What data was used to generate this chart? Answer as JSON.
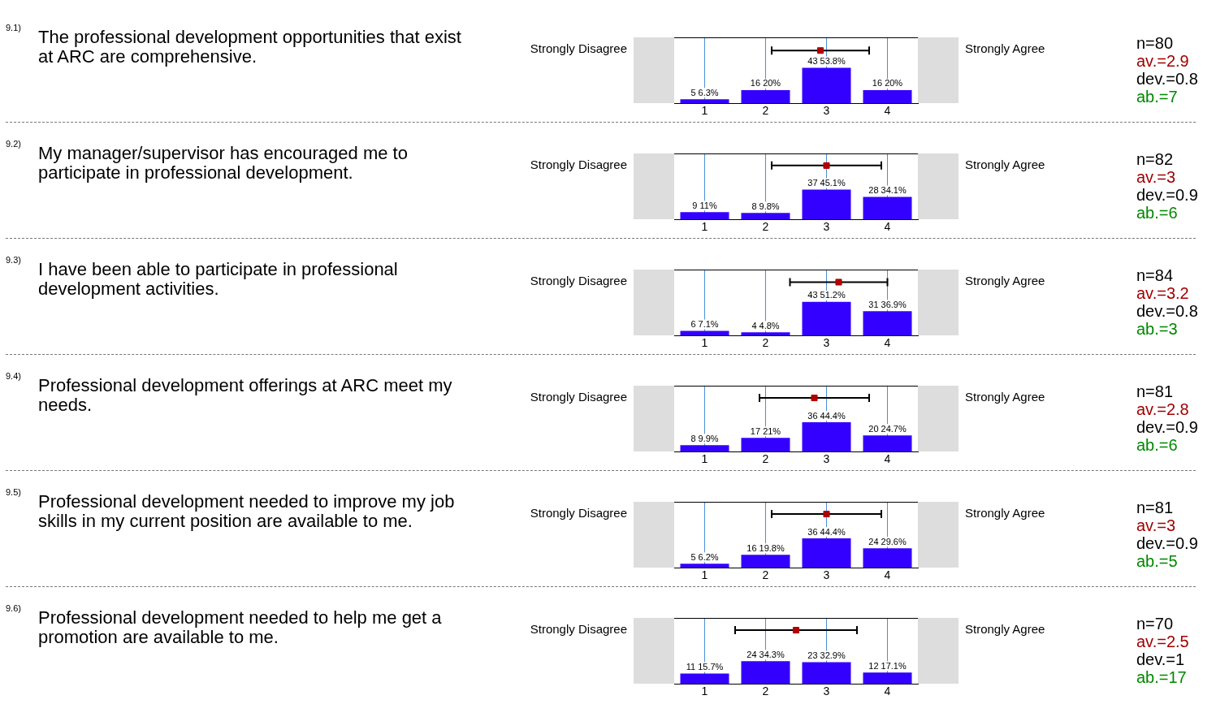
{
  "chart_data": [
    {
      "type": "bar",
      "xlim": [
        0.5,
        4.5
      ],
      "xticks": [
        1,
        2,
        3,
        4
      ],
      "grid": "x",
      "tick_labels": "x",
      "series": [
        {
          "type": "bar",
          "color": "#3300ff",
          "x": [
            1,
            2,
            3,
            4
          ],
          "values": [
            5,
            16,
            43,
            16
          ],
          "value_labels": [
            "5 6.3%",
            "16 20%",
            "43 53.8%",
            "16 20%"
          ]
        },
        {
          "type": "scatter",
          "marker": "square",
          "color": "#b00000",
          "x": [
            2.9
          ],
          "values": [
            64
          ],
          "xerrors": [
            0.8
          ]
        }
      ],
      "annotations": [
        "9.1)",
        "The professional development opportunities that exist at ARC are comprehensive.",
        "Strongly Disagree",
        "Strongly Agree",
        "n=80",
        "av.=2.9",
        "dev.=0.8",
        "ab.=7"
      ]
    },
    {
      "type": "bar",
      "xlim": [
        0.5,
        4.5
      ],
      "xticks": [
        1,
        2,
        3,
        4
      ],
      "grid": "x",
      "tick_labels": "x",
      "series": [
        {
          "type": "bar",
          "color": "#3300ff",
          "x": [
            1,
            2,
            3,
            4
          ],
          "values": [
            9,
            8,
            37,
            28
          ],
          "value_labels": [
            "9 11%",
            "8 9.8%",
            "37 45.1%",
            "28 34.1%"
          ]
        },
        {
          "type": "scatter",
          "marker": "square",
          "color": "#b00000",
          "x": [
            3
          ],
          "values": [
            67
          ],
          "xerrors": [
            0.9
          ]
        }
      ],
      "annotations": [
        "9.2)",
        "My manager/supervisor has encouraged me to participate in professional development.",
        "Strongly Disagree",
        "Strongly Agree",
        "n=82",
        "av.=3",
        "dev.=0.9",
        "ab.=6"
      ]
    },
    {
      "type": "bar",
      "xlim": [
        0.5,
        4.5
      ],
      "xticks": [
        1,
        2,
        3,
        4
      ],
      "grid": "x",
      "tick_labels": "x",
      "series": [
        {
          "type": "bar",
          "color": "#3300ff",
          "x": [
            1,
            2,
            3,
            4
          ],
          "values": [
            6,
            4,
            43,
            31
          ],
          "value_labels": [
            "6 7.1%",
            "4 4.8%",
            "43 51.2%",
            "31 36.9%"
          ]
        },
        {
          "type": "scatter",
          "marker": "square",
          "color": "#b00000",
          "x": [
            3.2
          ],
          "values": [
            68
          ],
          "xerrors": [
            0.8
          ]
        }
      ],
      "annotations": [
        "9.3)",
        "I have been able to participate in professional development activities.",
        "Strongly Disagree",
        "Strongly Agree",
        "n=84",
        "av.=3.2",
        "dev.=0.8",
        "ab.=3"
      ]
    },
    {
      "type": "bar",
      "xlim": [
        0.5,
        4.5
      ],
      "xticks": [
        1,
        2,
        3,
        4
      ],
      "grid": "x",
      "tick_labels": "x",
      "series": [
        {
          "type": "bar",
          "color": "#3300ff",
          "x": [
            1,
            2,
            3,
            4
          ],
          "values": [
            8,
            17,
            36,
            20
          ],
          "value_labels": [
            "8 9.9%",
            "17 21%",
            "36 44.4%",
            "20 24.7%"
          ]
        },
        {
          "type": "scatter",
          "marker": "square",
          "color": "#b00000",
          "x": [
            2.8
          ],
          "values": [
            66
          ],
          "xerrors": [
            0.9
          ]
        }
      ],
      "annotations": [
        "9.4)",
        "Professional development offerings at ARC meet my needs.",
        "Strongly Disagree",
        "Strongly Agree",
        "n=81",
        "av.=2.8",
        "dev.=0.9",
        "ab.=6"
      ]
    },
    {
      "type": "bar",
      "xlim": [
        0.5,
        4.5
      ],
      "xticks": [
        1,
        2,
        3,
        4
      ],
      "grid": "x",
      "tick_labels": "x",
      "series": [
        {
          "type": "bar",
          "color": "#3300ff",
          "x": [
            1,
            2,
            3,
            4
          ],
          "values": [
            5,
            16,
            36,
            24
          ],
          "value_labels": [
            "5 6.2%",
            "16 19.8%",
            "36 44.4%",
            "24 29.6%"
          ]
        },
        {
          "type": "scatter",
          "marker": "square",
          "color": "#b00000",
          "x": [
            3
          ],
          "values": [
            66
          ],
          "xerrors": [
            0.9
          ]
        }
      ],
      "annotations": [
        "9.5)",
        "Professional development needed to improve my job skills in my current position are available to me.",
        "Strongly Disagree",
        "Strongly Agree",
        "n=81",
        "av.=3",
        "dev.=0.9",
        "ab.=5"
      ]
    },
    {
      "type": "bar",
      "xlim": [
        0.5,
        4.5
      ],
      "xticks": [
        1,
        2,
        3,
        4
      ],
      "grid": "x",
      "tick_labels": "x",
      "series": [
        {
          "type": "bar",
          "color": "#3300ff",
          "x": [
            1,
            2,
            3,
            4
          ],
          "values": [
            11,
            24,
            23,
            12
          ],
          "value_labels": [
            "11 15.7%",
            "24 34.3%",
            "23 32.9%",
            "12 17.1%"
          ]
        },
        {
          "type": "scatter",
          "marker": "square",
          "color": "#b00000",
          "x": [
            2.5
          ],
          "values": [
            57
          ],
          "xerrors": [
            1
          ]
        }
      ],
      "annotations": [
        "9.6)",
        "Professional development needed to help me get a promotion are available to me.",
        "Strongly Disagree",
        "Strongly Agree",
        "n=70",
        "av.=2.5",
        "dev.=1",
        "ab.=17"
      ]
    }
  ]
}
